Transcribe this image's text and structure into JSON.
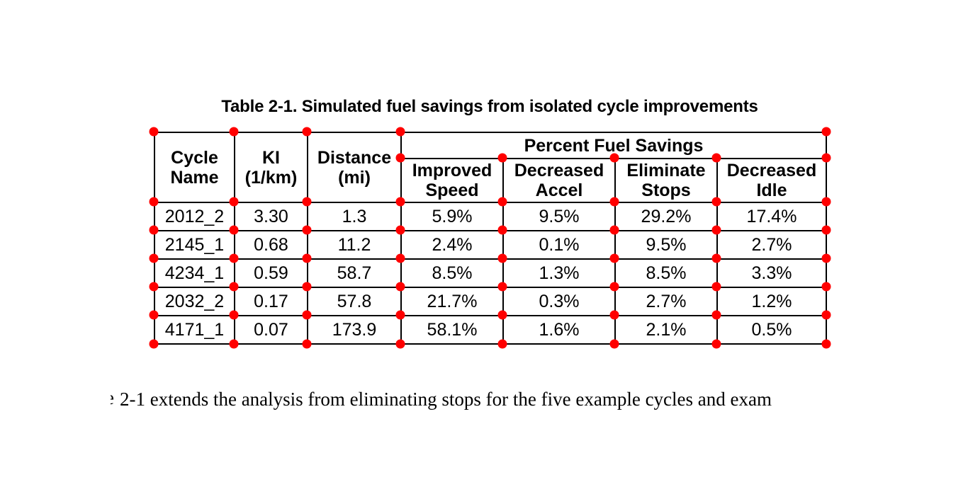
{
  "title": "Table 2-1. Simulated fuel savings from isolated cycle improvements",
  "table": {
    "group_header": "Percent Fuel Savings",
    "column_headers": {
      "cycle_name": "Cycle\nName",
      "ki": "KI\n(1/km)",
      "distance": "Distance\n(mi)",
      "improved_speed": "Improved\nSpeed",
      "decreased_accel": "Decreased\nAccel",
      "eliminate_stops": "Eliminate\nStops",
      "decreased_idle": "Decreased\nIdle"
    },
    "rows": [
      {
        "cycle_name": "2012_2",
        "ki": "3.30",
        "distance": "1.3",
        "improved_speed": "5.9%",
        "decreased_accel": "9.5%",
        "eliminate_stops": "29.2%",
        "decreased_idle": "17.4%"
      },
      {
        "cycle_name": "2145_1",
        "ki": "0.68",
        "distance": "11.2",
        "improved_speed": "2.4%",
        "decreased_accel": "0.1%",
        "eliminate_stops": "9.5%",
        "decreased_idle": "2.7%"
      },
      {
        "cycle_name": "4234_1",
        "ki": "0.59",
        "distance": "58.7",
        "improved_speed": "8.5%",
        "decreased_accel": "1.3%",
        "eliminate_stops": "8.5%",
        "decreased_idle": "3.3%"
      },
      {
        "cycle_name": "2032_2",
        "ki": "0.17",
        "distance": "57.8",
        "improved_speed": "21.7%",
        "decreased_accel": "0.3%",
        "eliminate_stops": "2.7%",
        "decreased_idle": "1.2%"
      },
      {
        "cycle_name": "4171_1",
        "ki": "0.07",
        "distance": "173.9",
        "improved_speed": "58.1%",
        "decreased_accel": "1.6%",
        "eliminate_stops": "2.1%",
        "decreased_idle": "0.5%"
      }
    ]
  },
  "body_text": {
    "clipped_lead_char": "e",
    "line": "2-1 extends the analysis from eliminating stops for the five example cycles and exam"
  },
  "colors": {
    "background": "#ffffff",
    "text": "#000000",
    "marker_dot": "#ff0000"
  }
}
